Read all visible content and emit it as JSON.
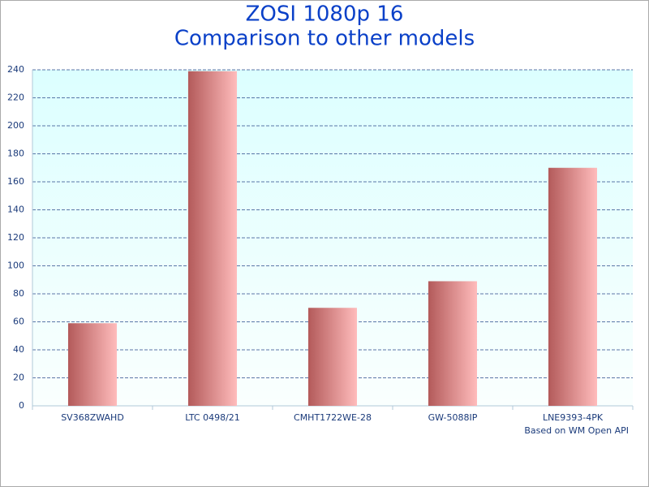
{
  "chart_data": {
    "type": "bar",
    "title": "ZOSI 1080p 16",
    "subtitle": "Comparison to other models",
    "categories": [
      "SV368ZWAHD",
      "LTC 0498/21",
      "CMHT1722WE-28",
      "GW-5088IP",
      "LNE9393-4PK"
    ],
    "values": [
      59,
      239,
      70,
      89,
      170
    ],
    "color": "#b35a5a",
    "ylim": [
      0,
      240
    ],
    "yticks": [
      0,
      20,
      40,
      60,
      80,
      100,
      120,
      140,
      160,
      180,
      200,
      220,
      240
    ],
    "grid": true,
    "annotation": "Based on WM Open API"
  }
}
